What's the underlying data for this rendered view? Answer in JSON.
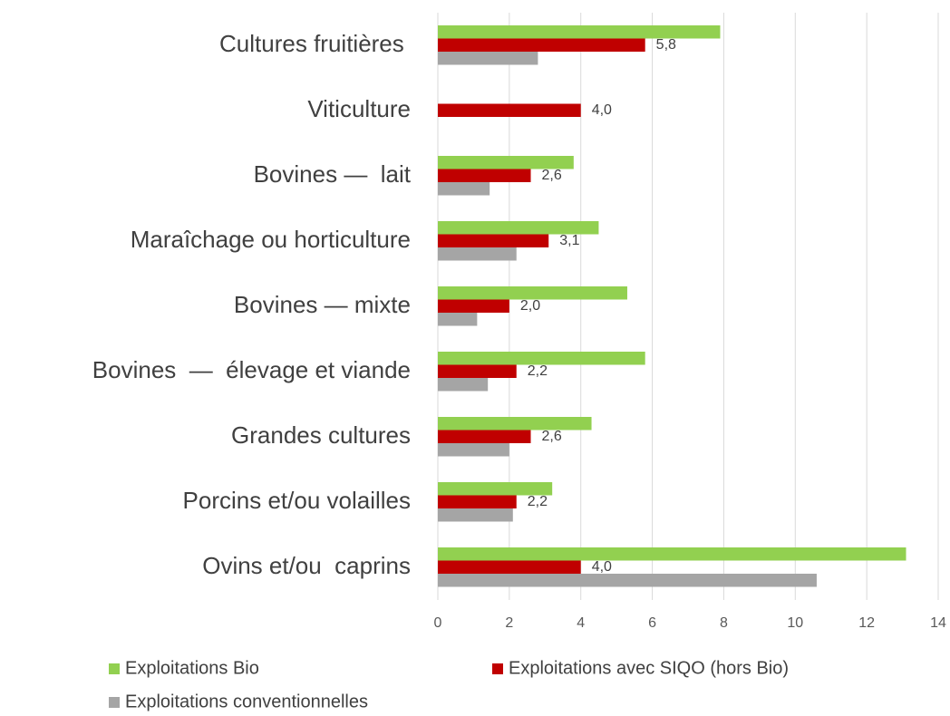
{
  "chart_data": {
    "type": "bar",
    "orientation": "horizontal",
    "categories": [
      "Cultures fruitières ",
      "Viticulture",
      "Bovines —  lait",
      "Maraîchage ou horticulture",
      "Bovines — mixte",
      "Bovines  —  élevage et viande",
      "Grandes cultures",
      "Porcins et/ou volailles",
      "Ovins et/ou  caprins"
    ],
    "series": [
      {
        "name": "Exploitations Bio",
        "color": "#92d050",
        "values": [
          7.9,
          null,
          3.8,
          4.5,
          5.3,
          5.8,
          4.3,
          3.2,
          13.1
        ]
      },
      {
        "name": "Exploitations avec SIQO (hors Bio)",
        "color": "#c00000",
        "values": [
          5.8,
          4.0,
          2.6,
          3.1,
          2.0,
          2.2,
          2.6,
          2.2,
          4.0
        ],
        "value_labels": [
          "5,8",
          "4,0",
          "2,6",
          "3,1",
          "2,0",
          "2,2",
          "2,6",
          "2,2",
          "4,0"
        ]
      },
      {
        "name": "Exploitations conventionnelles",
        "color": "#a5a5a5",
        "values": [
          2.8,
          null,
          1.45,
          2.2,
          1.1,
          1.4,
          2.0,
          2.1,
          10.6
        ]
      }
    ],
    "xlim": [
      0,
      14
    ],
    "xticks": [
      0,
      2,
      4,
      6,
      8,
      10,
      12,
      14
    ],
    "grid": true
  }
}
